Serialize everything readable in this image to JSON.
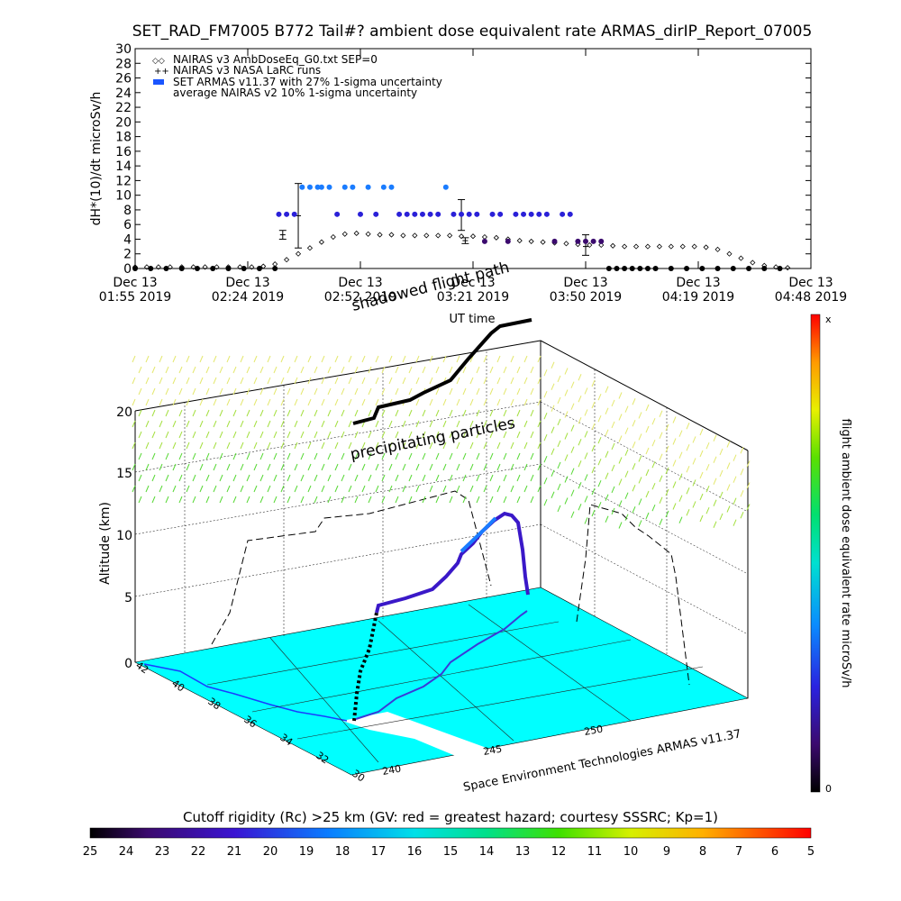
{
  "title": "SET_RAD_FM7005  B772 Tail#? ambient dose equivalent rate ARMAS_dirIP_Report_07005",
  "chart_data": [
    {
      "type": "scatter",
      "ylabel": "dH*(10)/dt microSv/h",
      "xlabel": "UT time",
      "ylim": [
        0,
        30
      ],
      "yticks": [
        0,
        2,
        4,
        6,
        8,
        10,
        12,
        14,
        16,
        18,
        20,
        22,
        24,
        26,
        28,
        30
      ],
      "xticks": [
        {
          "d": "Dec 13",
          "t": "01:55 2019"
        },
        {
          "d": "Dec 13",
          "t": "02:24 2019"
        },
        {
          "d": "Dec 13",
          "t": "02:52 2019"
        },
        {
          "d": "Dec 13",
          "t": "03:21 2019"
        },
        {
          "d": "Dec 13",
          "t": "03:50 2019"
        },
        {
          "d": "Dec 13",
          "t": "04:19 2019"
        },
        {
          "d": "Dec 13",
          "t": "04:48 2019"
        }
      ],
      "xlim_min": [
        0,
        174
      ],
      "legend": [
        {
          "symbol": "◇◇",
          "label": "NAIRAS v3 AmbDoseEq_G0.txt SEP=0"
        },
        {
          "symbol": "++",
          "label": "NAIRAS v3 NASA LaRC runs"
        },
        {
          "symbol": "■",
          "label": "SET ARMAS v11.37 with 27% 1-sigma uncertainty"
        },
        {
          "symbol": "",
          "label": "average NAIRAS v2 10% 1-sigma uncertainty"
        }
      ],
      "series": [
        {
          "name": "NAIRAS v3 AmbDoseEq_G0.txt SEP=0",
          "marker": "diamond",
          "x_min": [
            0,
            3,
            6,
            9,
            12,
            15,
            18,
            21,
            24,
            27,
            30,
            33,
            36,
            39,
            42,
            45,
            48,
            51,
            54,
            57,
            60,
            63,
            66,
            69,
            72,
            75,
            78,
            81,
            84,
            87,
            90,
            93,
            96,
            99,
            102,
            105,
            108,
            111,
            114,
            117,
            120,
            123,
            126,
            129,
            132,
            135,
            138,
            141,
            144,
            147,
            150,
            153,
            156,
            159,
            162,
            165,
            168
          ],
          "y": [
            0.2,
            0.2,
            0.2,
            0.2,
            0.2,
            0.2,
            0.2,
            0.2,
            0.2,
            0.2,
            0.2,
            0.3,
            0.6,
            1.2,
            2.0,
            2.8,
            3.6,
            4.3,
            4.7,
            4.8,
            4.7,
            4.6,
            4.6,
            4.5,
            4.5,
            4.5,
            4.5,
            4.5,
            4.4,
            4.4,
            4.3,
            4.2,
            4.0,
            3.8,
            3.7,
            3.6,
            3.5,
            3.4,
            3.3,
            3.2,
            3.2,
            3.1,
            3.0,
            3.0,
            3.0,
            3.0,
            3.0,
            3.0,
            3.0,
            2.9,
            2.6,
            2.0,
            1.4,
            0.8,
            0.4,
            0.2,
            0.1
          ]
        },
        {
          "name": "NAIRAS v3 NASA LaRC runs",
          "marker": "errorbar",
          "points": [
            {
              "x_min": 38,
              "y": 4.6,
              "lo": 4.0,
              "hi": 5.2
            },
            {
              "x_min": 42,
              "y": 7.2,
              "lo": 2.8,
              "hi": 11.6
            },
            {
              "x_min": 84,
              "y": 7.4,
              "lo": 5.2,
              "hi": 9.4
            },
            {
              "x_min": 85,
              "y": 3.8,
              "lo": 3.4,
              "hi": 4.2
            },
            {
              "x_min": 116,
              "y": 3.0,
              "lo": 1.8,
              "hi": 4.6
            }
          ]
        },
        {
          "name": "SET ARMAS v11.37 with 27% 1-sigma uncertainty",
          "marker": "dot",
          "x_min": [
            0,
            4,
            8,
            12,
            16,
            20,
            24,
            28,
            32,
            36,
            37,
            39,
            41,
            43,
            45,
            47,
            48,
            50,
            52,
            54,
            56,
            58,
            60,
            62,
            64,
            66,
            68,
            70,
            72,
            74,
            76,
            78,
            80,
            82,
            84,
            86,
            88,
            90,
            92,
            94,
            96,
            98,
            100,
            102,
            104,
            106,
            108,
            110,
            112,
            114,
            116,
            118,
            120,
            122,
            124,
            126,
            128,
            130,
            132,
            134,
            138,
            142,
            146,
            150,
            154,
            158,
            162,
            166
          ],
          "y": [
            0,
            0,
            0,
            0,
            0,
            0,
            0,
            0,
            0,
            0,
            7.4,
            7.4,
            7.4,
            11.1,
            11.1,
            11.1,
            11.1,
            11.1,
            7.4,
            11.1,
            11.1,
            7.4,
            11.1,
            7.4,
            11.1,
            11.1,
            7.4,
            7.4,
            7.4,
            7.4,
            7.4,
            7.4,
            11.1,
            7.4,
            7.4,
            7.4,
            7.4,
            3.7,
            7.4,
            7.4,
            3.7,
            7.4,
            7.4,
            7.4,
            7.4,
            7.4,
            3.7,
            7.4,
            7.4,
            3.7,
            3.7,
            3.7,
            3.7,
            0,
            0,
            0,
            0,
            0,
            0,
            0,
            0,
            0,
            0,
            0,
            0,
            0,
            0,
            0
          ]
        }
      ]
    },
    {
      "type": "3d-trajectory",
      "zlabel": "Altitude (km)",
      "zticks": [
        0,
        5,
        10,
        15,
        20
      ],
      "xticks": [
        240,
        245,
        250
      ],
      "yticks": [
        30,
        32,
        34,
        36,
        38,
        40,
        42
      ],
      "xlabel": "Space Environment Technologies ARMAS v11.37",
      "annotations": [
        "shadowed flight path",
        "precipitating particles"
      ],
      "colorbar": {
        "label": "flight ambient dose equivalent rate microSv/h",
        "top": "x",
        "bottom": "0"
      },
      "rigidity_bar": {
        "label": "Cutoff rigidity (Rc) >25 km (GV: red = greatest hazard; courtesy SSSRC; Kp=1)",
        "ticks": [
          25,
          24,
          23,
          22,
          21,
          20,
          19,
          18,
          17,
          16,
          15,
          14,
          13,
          12,
          11,
          10,
          9,
          8,
          7,
          6,
          5
        ]
      }
    }
  ]
}
